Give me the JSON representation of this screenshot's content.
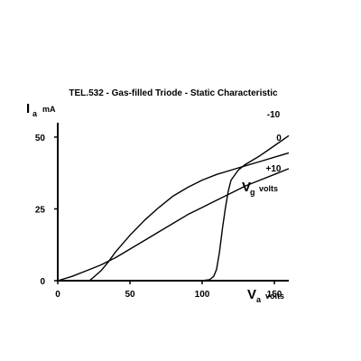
{
  "chart_data": {
    "type": "line",
    "title": "TEL.532  -  Gas-filled Triode  -  Static Characteristic",
    "xlabel": {
      "symbol": "V",
      "subscript": "a",
      "unit": "volts"
    },
    "ylabel": {
      "symbol": "I",
      "subscript": "a",
      "unit": "mA"
    },
    "legend_label": {
      "symbol": "V",
      "subscript": "g",
      "unit": "volts"
    },
    "xlim": [
      0,
      160
    ],
    "ylim": [
      0,
      55
    ],
    "x_ticks": [
      "0",
      "50",
      "100",
      "150"
    ],
    "y_ticks": [
      "0",
      "25",
      "50"
    ],
    "grid": false,
    "series": [
      {
        "name": "-10",
        "x": [
          100,
          105,
          108,
          110,
          112,
          114,
          116,
          118,
          120,
          125,
          130,
          140,
          150,
          160
        ],
        "y": [
          0,
          0.3,
          1.5,
          4,
          10,
          18,
          25,
          31,
          35,
          38.5,
          40.5,
          43.5,
          47,
          50.5
        ]
      },
      {
        "name": "0",
        "x": [
          22,
          25,
          30,
          35,
          40,
          50,
          60,
          70,
          80,
          90,
          100,
          110,
          120,
          130,
          140,
          150,
          160
        ],
        "y": [
          0,
          1.3,
          3.5,
          6.5,
          10,
          15.8,
          21,
          25.5,
          29.5,
          32.5,
          35,
          37,
          38.5,
          40,
          41.5,
          43,
          44.5
        ]
      },
      {
        "name": "+10",
        "x": [
          0,
          10,
          20,
          30,
          40,
          50,
          60,
          70,
          80,
          90,
          100,
          110,
          120,
          130,
          140,
          150,
          160
        ],
        "y": [
          0,
          1.5,
          3.5,
          5.5,
          8,
          11,
          14,
          17,
          20,
          23,
          25.5,
          28,
          30.5,
          33,
          35,
          37,
          39
        ]
      }
    ]
  }
}
